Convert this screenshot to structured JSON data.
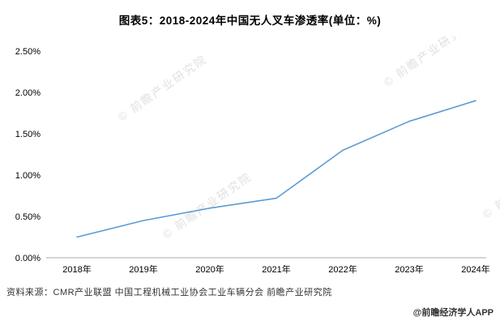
{
  "title": "图表5：2018-2024年中国无人叉车渗透率(单位：%)",
  "source_note": "资料来源：CMR产业联盟 中国工程机械工业协会工业车辆分会 前瞻产业研究院",
  "credit": "@前瞻经济学人APP",
  "watermark": "前瞻产业研究院",
  "chart_data": {
    "type": "line",
    "title": "图表5：2018-2024年中国无人叉车渗透率(单位：%)",
    "categories": [
      "2018年",
      "2019年",
      "2020年",
      "2021年",
      "2022年",
      "2023年",
      "2024年"
    ],
    "series": [
      {
        "name": "中国无人叉车渗透率(%)",
        "values": [
          0.25,
          0.45,
          0.6,
          0.72,
          1.3,
          1.65,
          1.9
        ]
      }
    ],
    "xlabel": "",
    "ylabel": "",
    "ylim": [
      0,
      2.5
    ],
    "yticks": [
      0,
      0.5,
      1.0,
      1.5,
      2.0,
      2.5
    ],
    "ytick_format": "0.00%",
    "grid": false,
    "legend_position": "none",
    "line_color": "#5B9BD5"
  }
}
